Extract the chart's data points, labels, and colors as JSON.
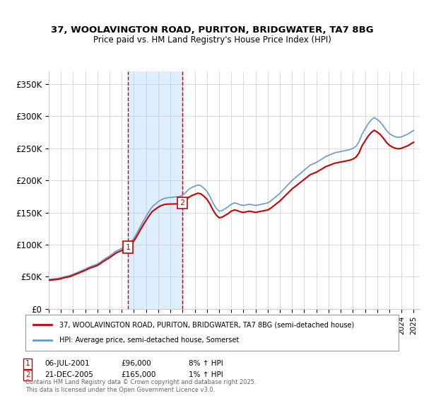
{
  "title1": "37, WOOLAVINGTON ROAD, PURITON, BRIDGWATER, TA7 8BG",
  "title2": "Price paid vs. HM Land Registry's House Price Index (HPI)",
  "ylabel_ticks": [
    "£0",
    "£50K",
    "£100K",
    "£150K",
    "£200K",
    "£250K",
    "£300K",
    "£350K"
  ],
  "ytick_values": [
    0,
    50000,
    100000,
    150000,
    200000,
    250000,
    300000,
    350000
  ],
  "ylim": [
    0,
    370000
  ],
  "xlim_start": 1995.0,
  "xlim_end": 2025.5,
  "xtick_years": [
    1995,
    1996,
    1997,
    1998,
    1999,
    2000,
    2001,
    2002,
    2003,
    2004,
    2005,
    2006,
    2007,
    2008,
    2009,
    2010,
    2011,
    2012,
    2013,
    2014,
    2015,
    2016,
    2017,
    2018,
    2019,
    2020,
    2021,
    2022,
    2023,
    2024,
    2025
  ],
  "sale1_x": 2001.51,
  "sale1_y": 96000,
  "sale2_x": 2005.97,
  "sale2_y": 165000,
  "sale1_label": "1",
  "sale2_label": "2",
  "sale1_date": "06-JUL-2001",
  "sale1_price": "£96,000",
  "sale1_hpi": "8% ↑ HPI",
  "sale2_date": "21-DEC-2005",
  "sale2_price": "£165,000",
  "sale2_hpi": "1% ↑ HPI",
  "line1_label": "37, WOOLAVINGTON ROAD, PURITON, BRIDGWATER, TA7 8BG (semi-detached house)",
  "line2_label": "HPI: Average price, semi-detached house, Somerset",
  "line1_color": "#cc0000",
  "line2_color": "#6699cc",
  "shade_color": "#ddeeff",
  "grid_color": "#cccccc",
  "footnote": "Contains HM Land Registry data © Crown copyright and database right 2025.\nThis data is licensed under the Open Government Licence v3.0.",
  "bg_color": "#ffffff",
  "hpi_data_x": [
    1995.0,
    1995.25,
    1995.5,
    1995.75,
    1996.0,
    1996.25,
    1996.5,
    1996.75,
    1997.0,
    1997.25,
    1997.5,
    1997.75,
    1998.0,
    1998.25,
    1998.5,
    1998.75,
    1999.0,
    1999.25,
    1999.5,
    1999.75,
    2000.0,
    2000.25,
    2000.5,
    2000.75,
    2001.0,
    2001.25,
    2001.5,
    2001.75,
    2002.0,
    2002.25,
    2002.5,
    2002.75,
    2003.0,
    2003.25,
    2003.5,
    2003.75,
    2004.0,
    2004.25,
    2004.5,
    2004.75,
    2005.0,
    2005.25,
    2005.5,
    2005.75,
    2006.0,
    2006.25,
    2006.5,
    2006.75,
    2007.0,
    2007.25,
    2007.5,
    2007.75,
    2008.0,
    2008.25,
    2008.5,
    2008.75,
    2009.0,
    2009.25,
    2009.5,
    2009.75,
    2010.0,
    2010.25,
    2010.5,
    2010.75,
    2011.0,
    2011.25,
    2011.5,
    2011.75,
    2012.0,
    2012.25,
    2012.5,
    2012.75,
    2013.0,
    2013.25,
    2013.5,
    2013.75,
    2014.0,
    2014.25,
    2014.5,
    2014.75,
    2015.0,
    2015.25,
    2015.5,
    2015.75,
    2016.0,
    2016.25,
    2016.5,
    2016.75,
    2017.0,
    2017.25,
    2017.5,
    2017.75,
    2018.0,
    2018.25,
    2018.5,
    2018.75,
    2019.0,
    2019.25,
    2019.5,
    2019.75,
    2020.0,
    2020.25,
    2020.5,
    2020.75,
    2021.0,
    2021.25,
    2021.5,
    2021.75,
    2022.0,
    2022.25,
    2022.5,
    2022.75,
    2023.0,
    2023.25,
    2023.5,
    2023.75,
    2024.0,
    2024.25,
    2024.5,
    2024.75,
    2025.0
  ],
  "hpi_data_y": [
    46000,
    46500,
    47000,
    47500,
    48500,
    50000,
    51000,
    52000,
    54000,
    56000,
    58000,
    60000,
    62000,
    64500,
    66500,
    68000,
    70000,
    73000,
    76500,
    79500,
    82500,
    86000,
    89500,
    92000,
    94000,
    96500,
    99000,
    104000,
    110000,
    118000,
    127000,
    136000,
    144000,
    152000,
    159000,
    163000,
    167000,
    170000,
    172000,
    173000,
    173500,
    174000,
    174500,
    175000,
    177000,
    181000,
    186000,
    189000,
    191000,
    193000,
    192000,
    188000,
    183000,
    175000,
    165000,
    157000,
    152000,
    153000,
    156000,
    159000,
    163000,
    165000,
    164000,
    162000,
    161000,
    162000,
    163000,
    162000,
    161000,
    162000,
    163000,
    164000,
    165000,
    168000,
    172000,
    176000,
    180000,
    185000,
    190000,
    195000,
    200000,
    204000,
    208000,
    212000,
    216000,
    220000,
    224000,
    226000,
    228000,
    231000,
    234000,
    237000,
    239000,
    241000,
    243000,
    244000,
    245000,
    246000,
    247000,
    248000,
    250000,
    253000,
    260000,
    272000,
    280000,
    288000,
    294000,
    298000,
    295000,
    291000,
    285000,
    278000,
    273000,
    270000,
    268000,
    267000,
    268000,
    270000,
    272000,
    275000,
    278000
  ],
  "sale_line_color": "#cc0000",
  "marker_box_color": "#cc0000",
  "marker_text_color": "#cc0000"
}
